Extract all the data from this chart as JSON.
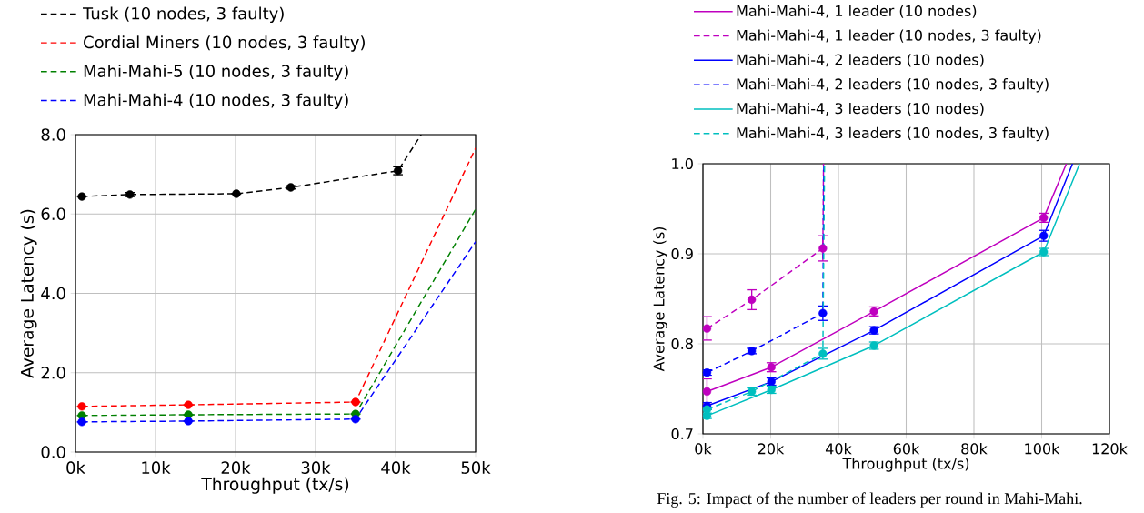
{
  "chart_data": [
    {
      "type": "line",
      "xlabel": "Throughput (tx/s)",
      "ylabel": "Average Latency (s)",
      "xlim": [
        0,
        50000
      ],
      "ylim": [
        0,
        8
      ],
      "xticks": [
        {
          "value": 0,
          "label": "0k"
        },
        {
          "value": 10000,
          "label": "10k"
        },
        {
          "value": 20000,
          "label": "20k"
        },
        {
          "value": 30000,
          "label": "30k"
        },
        {
          "value": 40000,
          "label": "40k"
        },
        {
          "value": 50000,
          "label": "50k"
        }
      ],
      "yticks": [
        {
          "value": 0,
          "label": "0.0"
        },
        {
          "value": 2,
          "label": "2.0"
        },
        {
          "value": 4,
          "label": "4.0"
        },
        {
          "value": 6,
          "label": "6.0"
        },
        {
          "value": 8,
          "label": "8.0"
        }
      ],
      "grid": true,
      "legend": "top",
      "marker": "circle",
      "series": [
        {
          "name": "Tusk (10 nodes, 3 faulty)",
          "color": "#000000",
          "line_style": "dashed",
          "x": [
            800,
            6800,
            20100,
            26900,
            40300,
            43200
          ],
          "values": [
            6.44,
            6.49,
            6.51,
            6.67,
            7.09,
            8.0
          ],
          "errors": [
            null,
            0.05,
            null,
            0.04,
            0.1,
            null
          ]
        },
        {
          "name": "Cordial Miners (10 nodes, 3 faulty)",
          "color": "#ff0000",
          "line_style": "dashed",
          "x": [
            800,
            14100,
            35000,
            50000
          ],
          "values": [
            1.15,
            1.19,
            1.26,
            7.66
          ],
          "errors": [
            null,
            null,
            null,
            null
          ]
        },
        {
          "name": "Mahi-Mahi-5 (10 nodes, 3 faulty)",
          "color": "#008000",
          "line_style": "dashed",
          "x": [
            800,
            14100,
            35000,
            50000
          ],
          "values": [
            0.92,
            0.94,
            0.96,
            6.12
          ],
          "errors": [
            null,
            null,
            null,
            null
          ]
        },
        {
          "name": "Mahi-Mahi-4 (10 nodes, 3 faulty)",
          "color": "#0000ff",
          "line_style": "dashed",
          "x": [
            800,
            14100,
            35000,
            50000
          ],
          "values": [
            0.76,
            0.78,
            0.83,
            5.3
          ],
          "errors": [
            null,
            null,
            null,
            null
          ]
        }
      ]
    },
    {
      "type": "line",
      "xlabel": "Throughput (tx/s)",
      "ylabel": "Average Latency (s)",
      "xlim": [
        0,
        120000
      ],
      "ylim": [
        0.7,
        1.0
      ],
      "xticks": [
        {
          "value": 0,
          "label": "0k"
        },
        {
          "value": 20000,
          "label": "20k"
        },
        {
          "value": 40000,
          "label": "40k"
        },
        {
          "value": 60000,
          "label": "60k"
        },
        {
          "value": 80000,
          "label": "80k"
        },
        {
          "value": 100000,
          "label": "100k"
        },
        {
          "value": 120000,
          "label": "120k"
        }
      ],
      "yticks": [
        {
          "value": 0.7,
          "label": "0.7"
        },
        {
          "value": 0.8,
          "label": "0.8"
        },
        {
          "value": 0.9,
          "label": "0.9"
        },
        {
          "value": 1.0,
          "label": "1.0"
        }
      ],
      "grid": true,
      "legend": "top",
      "marker": "circle",
      "annotations": [
        "Fig. 5: Impact of the number of leaders per round in Mahi-Mahi."
      ],
      "series": [
        {
          "name": "Mahi-Mahi-4, 1 leader (10 nodes)",
          "color": "#bf00bf",
          "line_style": "solid",
          "x": [
            1200,
            20200,
            50500,
            100600,
            107300
          ],
          "values": [
            0.747,
            0.774,
            0.836,
            0.94,
            1.0
          ],
          "errors": [
            0.014,
            0.005,
            0.005,
            0.005,
            null
          ]
        },
        {
          "name": "Mahi-Mahi-4, 1 leader (10 nodes, 3 faulty)",
          "color": "#bf00bf",
          "line_style": "dashed",
          "x": [
            1200,
            14400,
            35400,
            35600
          ],
          "values": [
            0.817,
            0.849,
            0.906,
            1.0
          ],
          "errors": [
            0.013,
            0.011,
            0.014,
            null
          ]
        },
        {
          "name": "Mahi-Mahi-4, 2 leaders (10 nodes)",
          "color": "#0000ff",
          "line_style": "solid",
          "x": [
            1200,
            20200,
            50500,
            100600,
            109100
          ],
          "values": [
            0.731,
            0.758,
            0.815,
            0.92,
            1.0
          ],
          "errors": [
            0.004,
            0.004,
            0.004,
            0.006,
            null
          ]
        },
        {
          "name": "Mahi-Mahi-4, 2 leaders (10 nodes, 3 faulty)",
          "color": "#0000ff",
          "line_style": "dashed",
          "x": [
            1200,
            14400,
            35400,
            35700
          ],
          "values": [
            0.768,
            0.792,
            0.834,
            1.0
          ],
          "errors": [
            0.003,
            0.003,
            0.008,
            null
          ]
        },
        {
          "name": "Mahi-Mahi-4, 3 leaders (10 nodes)",
          "color": "#00bfbf",
          "line_style": "solid",
          "x": [
            1200,
            20200,
            50500,
            100600,
            111200
          ],
          "values": [
            0.72,
            0.749,
            0.798,
            0.902,
            1.0
          ],
          "errors": [
            0.003,
            0.004,
            0.004,
            0.004,
            null
          ]
        },
        {
          "name": "Mahi-Mahi-4, 3 leaders (10 nodes, 3 faulty)",
          "color": "#00bfbf",
          "line_style": "dashed",
          "x": [
            1200,
            14400,
            35400,
            35900
          ],
          "values": [
            0.727,
            0.747,
            0.789,
            1.0
          ],
          "errors": [
            null,
            0.004,
            0.006,
            null
          ]
        }
      ]
    }
  ]
}
